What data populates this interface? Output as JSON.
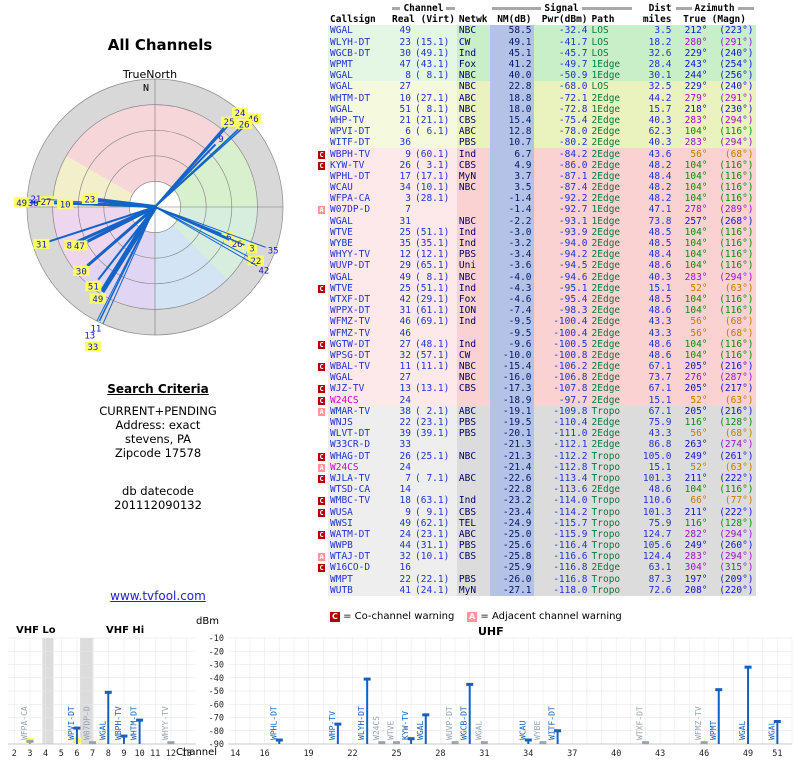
{
  "radar": {
    "title": "All Channels",
    "north_label": "TrueNorth",
    "n_axis": "N"
  },
  "search": {
    "heading": "Search Criteria",
    "lines": [
      "CURRENT+PENDING",
      "Address: exact",
      "stevens, PA",
      "Zipcode 17578"
    ],
    "datecode_label": "db datecode",
    "datecode": "201112090132",
    "link": "www.tvfool.com"
  },
  "table": {
    "groups": {
      "channel": "Channel",
      "signal": "Signal",
      "dist": "Dist",
      "azimuth": "Azimuth"
    },
    "columns": [
      "Callsign",
      "Real (Virt)",
      "Netwk",
      "NM(dB)",
      "Pwr(dBm)",
      "Path",
      "miles",
      "True (Magn)"
    ],
    "rows": [
      [
        "",
        "WGAL",
        "49",
        "",
        "NBC",
        "58.5",
        "-32.4",
        "LOS",
        "3.5",
        212,
        223,
        "g",
        0
      ],
      [
        "",
        "WLYH-DT",
        "23",
        "(15.1)",
        "CW",
        "49.1",
        "-41.7",
        "LOS",
        "18.2",
        280,
        291,
        "g",
        0
      ],
      [
        "",
        "WGCB-DT",
        "30",
        "(49.1)",
        "Ind",
        "45.1",
        "-45.7",
        "LOS",
        "32.6",
        229,
        240,
        "g",
        0
      ],
      [
        "",
        "WPMT",
        "47",
        "(43.1)",
        "Fox",
        "41.2",
        "-49.7",
        "1Edge",
        "28.4",
        243,
        254,
        "g",
        0
      ],
      [
        "",
        "WGAL",
        "8",
        "( 8.1)",
        "NBC",
        "40.0",
        "-50.9",
        "1Edge",
        "30.1",
        244,
        256,
        "g",
        0
      ],
      [
        "",
        "WGAL",
        "27",
        "",
        "NBC",
        "22.8",
        "-68.0",
        "LOS",
        "32.5",
        229,
        240,
        "y",
        0
      ],
      [
        "",
        "WHTM-DT",
        "10",
        "(27.1)",
        "ABC",
        "18.8",
        "-72.1",
        "2Edge",
        "44.2",
        279,
        291,
        "y",
        0
      ],
      [
        "",
        "WGAL",
        "51",
        "( 8.1)",
        "NBC",
        "18.0",
        "-72.8",
        "1Edge",
        "15.7",
        218,
        230,
        "y",
        0
      ],
      [
        "",
        "WHP-TV",
        "21",
        "(21.1)",
        "CBS",
        "15.4",
        "-75.4",
        "2Edge",
        "40.3",
        283,
        294,
        "y",
        0
      ],
      [
        "",
        "WPVI-DT",
        "6",
        "( 6.1)",
        "ABC",
        "12.8",
        "-78.0",
        "2Edge",
        "62.3",
        104,
        116,
        "y",
        0
      ],
      [
        "",
        "WITF-DT",
        "36",
        "",
        "PBS",
        "10.7",
        "-80.2",
        "2Edge",
        "40.3",
        283,
        294,
        "y",
        0
      ],
      [
        "C",
        "WBPH-TV",
        "9",
        "(60.1)",
        "Ind",
        "6.7",
        "-84.2",
        "2Edge",
        "43.6",
        56,
        68,
        "p",
        0
      ],
      [
        "C",
        "KYW-TV",
        "26",
        "( 3.1)",
        "CBS",
        "4.9",
        "-86.0",
        "2Edge",
        "48.2",
        104,
        116,
        "p",
        0
      ],
      [
        "",
        "WPHL-DT",
        "17",
        "(17.1)",
        "MyN",
        "3.7",
        "-87.1",
        "2Edge",
        "48.4",
        104,
        116,
        "p",
        0
      ],
      [
        "",
        "WCAU",
        "34",
        "(10.1)",
        "NBC",
        "3.5",
        "-87.4",
        "2Edge",
        "48.2",
        104,
        116,
        "p",
        0
      ],
      [
        "",
        "WFPA-CA",
        "3",
        "(28.1)",
        "",
        "-1.4",
        "-92.2",
        "2Edge",
        "48.2",
        104,
        116,
        "p",
        0
      ],
      [
        "A",
        "W07DP-D",
        "7",
        "",
        "",
        "-1.4",
        "-92.7",
        "1Edge",
        "47.1",
        278,
        289,
        "p",
        0
      ],
      [
        "",
        "WGAL",
        "31",
        "",
        "NBC",
        "-2.2",
        "-93.1",
        "1Edge",
        "73.8",
        257,
        268,
        "p",
        0
      ],
      [
        "",
        "WTVE",
        "25",
        "(51.1)",
        "Ind",
        "-3.0",
        "-93.9",
        "2Edge",
        "48.5",
        104,
        116,
        "p",
        0
      ],
      [
        "",
        "WYBE",
        "35",
        "(35.1)",
        "Ind",
        "-3.2",
        "-94.0",
        "2Edge",
        "48.5",
        104,
        116,
        "p",
        0
      ],
      [
        "",
        "WHYY-TV",
        "12",
        "(12.1)",
        "PBS",
        "-3.4",
        "-94.2",
        "2Edge",
        "48.4",
        104,
        116,
        "p",
        0
      ],
      [
        "",
        "WUVP-DT",
        "29",
        "(65.1)",
        "Uni",
        "-3.6",
        "-94.5",
        "2Edge",
        "48.6",
        104,
        116,
        "p",
        0
      ],
      [
        "",
        "WGAL",
        "49",
        "( 8.1)",
        "NBC",
        "-4.0",
        "-94.6",
        "2Edge",
        "40.3",
        283,
        294,
        "p",
        0
      ],
      [
        "C",
        "WTVE",
        "25",
        "(51.1)",
        "Ind",
        "-4.3",
        "-95.1",
        "2Edge",
        "15.1",
        52,
        63,
        "p",
        0
      ],
      [
        "",
        "WTXF-DT",
        "42",
        "(29.1)",
        "Fox",
        "-4.6",
        "-95.4",
        "2Edge",
        "48.5",
        104,
        116,
        "p",
        0
      ],
      [
        "",
        "WPPX-DT",
        "31",
        "(61.1)",
        "ION",
        "-7.4",
        "-98.3",
        "2Edge",
        "48.6",
        104,
        116,
        "p",
        0
      ],
      [
        "",
        "WFMZ-TV",
        "46",
        "(69.1)",
        "Ind",
        "-9.5",
        "-100.4",
        "2Edge",
        "43.3",
        56,
        68,
        "p",
        0
      ],
      [
        "",
        "WFMZ-TV",
        "46",
        "",
        "",
        "-9.5",
        "-100.4",
        "2Edge",
        "43.3",
        56,
        68,
        "p",
        0
      ],
      [
        "C",
        "WGTW-DT",
        "27",
        "(48.1)",
        "Ind",
        "-9.6",
        "-100.5",
        "2Edge",
        "48.6",
        104,
        116,
        "p",
        0
      ],
      [
        "",
        "WPSG-DT",
        "32",
        "(57.1)",
        "CW",
        "-10.0",
        "-100.8",
        "2Edge",
        "48.6",
        104,
        116,
        "p",
        0
      ],
      [
        "C",
        "WBAL-TV",
        "11",
        "(11.1)",
        "NBC",
        "-15.4",
        "-106.2",
        "2Edge",
        "67.1",
        205,
        216,
        "p",
        0
      ],
      [
        "",
        "WGAL",
        "27",
        "",
        "NBC",
        "-16.0",
        "-106.8",
        "2Edge",
        "73.7",
        276,
        287,
        "p",
        0
      ],
      [
        "C",
        "WJZ-TV",
        "13",
        "(13.1)",
        "CBS",
        "-17.3",
        "-107.8",
        "2Edge",
        "67.1",
        205,
        217,
        "p",
        0
      ],
      [
        "C",
        "W24CS",
        "24",
        "",
        "",
        "-18.9",
        "-97.7",
        "2Edge",
        "15.1",
        52,
        63,
        "p",
        1
      ],
      [
        "A",
        "WMAR-TV",
        "38",
        "( 2.1)",
        "ABC",
        "-19.1",
        "-109.8",
        "Tropo",
        "67.1",
        205,
        216,
        "x",
        0
      ],
      [
        "",
        "WNJS",
        "22",
        "(23.1)",
        "PBS",
        "-19.5",
        "-110.4",
        "2Edge",
        "75.9",
        116,
        128,
        "x",
        0
      ],
      [
        "",
        "WLVT-DT",
        "39",
        "(39.1)",
        "PBS",
        "-20.1",
        "-111.0",
        "2Edge",
        "43.3",
        56,
        68,
        "x",
        0
      ],
      [
        "",
        "W33CR-D",
        "33",
        "",
        "",
        "-21.3",
        "-112.1",
        "2Edge",
        "86.8",
        263,
        274,
        "x",
        0
      ],
      [
        "C",
        "WHAG-DT",
        "26",
        "(25.1)",
        "NBC",
        "-21.3",
        "-112.2",
        "Tropo",
        "105.0",
        249,
        261,
        "x",
        0
      ],
      [
        "A",
        "W24CS",
        "24",
        "",
        "",
        "-21.4",
        "-112.8",
        "Tropo",
        "15.1",
        52,
        63,
        "x",
        1
      ],
      [
        "C",
        "WJLA-TV",
        "7",
        "( 7.1)",
        "ABC",
        "-22.6",
        "-113.4",
        "Tropo",
        "101.3",
        211,
        222,
        "x",
        0
      ],
      [
        "",
        "WTSD-CA",
        "14",
        "",
        "",
        "-22.8",
        "-113.6",
        "2Edge",
        "48.6",
        104,
        116,
        "x",
        0
      ],
      [
        "C",
        "WMBC-TV",
        "18",
        "(63.1)",
        "Ind",
        "-23.2",
        "-114.0",
        "Tropo",
        "110.6",
        66,
        77,
        "x",
        0
      ],
      [
        "C",
        "WUSA",
        "9",
        "( 9.1)",
        "CBS",
        "-23.4",
        "-114.2",
        "Tropo",
        "101.3",
        211,
        222,
        "x",
        0
      ],
      [
        "",
        "WWSI",
        "49",
        "(62.1)",
        "TEL",
        "-24.9",
        "-115.7",
        "Tropo",
        "75.9",
        116,
        128,
        "x",
        0
      ],
      [
        "C",
        "WATM-DT",
        "24",
        "(23.1)",
        "ABC",
        "-25.0",
        "-115.9",
        "Tropo",
        "124.7",
        282,
        294,
        "x",
        0
      ],
      [
        "",
        "WWPB",
        "44",
        "(31.1)",
        "PBS",
        "-25.6",
        "-116.4",
        "Tropo",
        "105.6",
        249,
        260,
        "x",
        0
      ],
      [
        "A",
        "WTAJ-DT",
        "32",
        "(10.1)",
        "CBS",
        "-25.8",
        "-116.6",
        "Tropo",
        "124.4",
        283,
        294,
        "x",
        0
      ],
      [
        "C",
        "W16CO-D",
        "16",
        "",
        "",
        "-25.9",
        "-116.8",
        "2Edge",
        "63.1",
        304,
        315,
        "x",
        0
      ],
      [
        "",
        "WMPT",
        "22",
        "(22.1)",
        "PBS",
        "-26.0",
        "-116.8",
        "Tropo",
        "87.3",
        197,
        209,
        "x",
        0
      ],
      [
        "",
        "WUTB",
        "41",
        "(24.1)",
        "MyN",
        "-27.1",
        "-118.0",
        "Tropo",
        "72.6",
        208,
        220,
        "x",
        0
      ]
    ]
  },
  "legend": {
    "co_badge": "C",
    "co_text": "= Co-channel warning",
    "adj_badge": "A",
    "adj_text": "= Adjacent channel warning"
  },
  "spectrum": {
    "dbm_label": "dBm",
    "channel_label": "Channel",
    "y_ticks": [
      -10,
      -20,
      -30,
      -40,
      -50,
      -60,
      -70,
      -80,
      -90
    ],
    "vhf_lo_label": "VHF Lo",
    "vhf_hi_label": "VHF Hi",
    "uhf_title": "UHF"
  },
  "chart_data": [
    {
      "type": "scatter",
      "title": "All Channels (azimuth radar, TrueNorth up)",
      "pointers": [
        {
          "ch": "24",
          "az": 42,
          "r": 0.93,
          "w": 1.5,
          "hl": true
        },
        {
          "ch": "46",
          "az": 48,
          "r": 0.97,
          "w": 1.5,
          "hl": true
        },
        {
          "ch": "25",
          "az": 41,
          "r": 0.82,
          "w": 2,
          "hl": true
        },
        {
          "ch": "26",
          "az": 47,
          "r": 0.89,
          "w": 1.5,
          "hl": true
        },
        {
          "ch": "9",
          "az": 44,
          "r": 0.68,
          "w": 2,
          "hl": false
        },
        {
          "ch": "6",
          "az": 112,
          "r": 0.56,
          "w": 1.5,
          "hl": true
        },
        {
          "ch": "26",
          "az": 114,
          "r": 0.64,
          "w": 1.5,
          "hl": true
        },
        {
          "ch": "3",
          "az": 113,
          "r": 0.76,
          "w": 1.5,
          "hl": true
        },
        {
          "ch": "35",
          "az": 110,
          "r": 0.92,
          "w": 1,
          "hl": false
        },
        {
          "ch": "22",
          "az": 118,
          "r": 0.83,
          "w": 1,
          "hl": true
        },
        {
          "ch": "42",
          "az": 120,
          "r": 0.92,
          "w": 1,
          "hl": false
        },
        {
          "ch": "49",
          "az": 272,
          "r": 0.98,
          "w": 1.5,
          "hl": true
        },
        {
          "ch": "36",
          "az": 272,
          "r": 0.89,
          "w": 1.5,
          "hl": false
        },
        {
          "ch": "27",
          "az": 273,
          "r": 0.79,
          "w": 1.5,
          "hl": true
        },
        {
          "ch": "21",
          "az": 274,
          "r": 0.87,
          "w": 1,
          "hl": false
        },
        {
          "ch": "10",
          "az": 272,
          "r": 0.64,
          "w": 1.5,
          "hl": true
        },
        {
          "ch": "23",
          "az": 277,
          "r": 0.45,
          "w": 4,
          "hl": true
        },
        {
          "ch": "31",
          "az": 252,
          "r": 0.87,
          "w": 2,
          "hl": true
        },
        {
          "ch": "8",
          "az": 246,
          "r": 0.67,
          "w": 3,
          "hl": true
        },
        {
          "ch": "47",
          "az": 243,
          "r": 0.6,
          "w": 3,
          "hl": true
        },
        {
          "ch": "30",
          "az": 229,
          "r": 0.7,
          "w": 3,
          "hl": true
        },
        {
          "ch": "49",
          "az": 212,
          "r": 0.78,
          "w": 5,
          "hl": true
        },
        {
          "ch": "51",
          "az": 218,
          "r": 0.72,
          "w": 2,
          "hl": true
        },
        {
          "ch": "11",
          "az": 206,
          "r": 0.99,
          "w": 1.5,
          "hl": false
        },
        {
          "ch": "13",
          "az": 207,
          "r": 1.06,
          "w": 1,
          "hl": false
        },
        {
          "ch": "33",
          "az": 204,
          "r": 1.13,
          "w": 1,
          "hl": true
        }
      ]
    },
    {
      "type": "bar",
      "title": "VHF signal levels (dBm)",
      "x_ticks": [
        2,
        3,
        4,
        5,
        6,
        7,
        8,
        9,
        10,
        11,
        12,
        13
      ],
      "ylim": [
        -90,
        -10
      ],
      "bars": [
        {
          "ch": 3,
          "call": "WFPA-CA",
          "dbm": -88,
          "gray": true,
          "hl": true
        },
        {
          "ch": 6,
          "call": "WPVI-DT",
          "dbm": -78,
          "gray": false,
          "hl": true
        },
        {
          "ch": 7,
          "call": "W07DP-D",
          "dbm": -89,
          "gray": true,
          "hl": false
        },
        {
          "ch": 8,
          "call": "WGAL",
          "dbm": -51,
          "gray": false,
          "hl": false
        },
        {
          "ch": 9,
          "call": "WBPH-TV",
          "dbm": -84,
          "gray": false,
          "hl": false
        },
        {
          "ch": 10,
          "call": "WHTM-DT",
          "dbm": -72,
          "gray": false,
          "hl": false
        },
        {
          "ch": 12,
          "call": "WHYY-TV",
          "dbm": -89,
          "gray": true,
          "hl": false
        }
      ]
    },
    {
      "type": "bar",
      "title": "UHF signal levels (dBm)",
      "x_ticks": [
        14,
        16,
        19,
        22,
        25,
        28,
        31,
        34,
        37,
        40,
        43,
        46,
        49,
        51
      ],
      "ylim": [
        -90,
        -10
      ],
      "bars": [
        {
          "ch": 17,
          "call": "WPHL-DT",
          "dbm": -87,
          "gray": false,
          "hl": false
        },
        {
          "ch": 21,
          "call": "WHP-TV",
          "dbm": -75,
          "gray": false,
          "hl": false
        },
        {
          "ch": 23,
          "call": "WLYH-DT",
          "dbm": -41,
          "gray": false,
          "hl": false
        },
        {
          "ch": 24,
          "call": "W24CS",
          "dbm": -89,
          "gray": true,
          "hl": false
        },
        {
          "ch": 25,
          "call": "WTVE",
          "dbm": -89,
          "gray": true,
          "hl": false
        },
        {
          "ch": 26,
          "call": "KYW-TV",
          "dbm": -86,
          "gray": false,
          "hl": false
        },
        {
          "ch": 27,
          "call": "WGAL",
          "dbm": -68,
          "gray": false,
          "hl": false
        },
        {
          "ch": 29,
          "call": "WUVP-DT",
          "dbm": -89,
          "gray": true,
          "hl": false
        },
        {
          "ch": 30,
          "call": "WGCB-DT",
          "dbm": -45,
          "gray": false,
          "hl": false
        },
        {
          "ch": 31,
          "call": "WGAL",
          "dbm": -89,
          "gray": true,
          "hl": false
        },
        {
          "ch": 34,
          "call": "WCAU",
          "dbm": -87,
          "gray": false,
          "hl": false
        },
        {
          "ch": 35,
          "call": "WYBE",
          "dbm": -89,
          "gray": true,
          "hl": false
        },
        {
          "ch": 36,
          "call": "WITF-DT",
          "dbm": -80,
          "gray": false,
          "hl": false
        },
        {
          "ch": 42,
          "call": "WTXF-DT",
          "dbm": -89,
          "gray": true,
          "hl": false
        },
        {
          "ch": 46,
          "call": "WFMZ-TV",
          "dbm": -89,
          "gray": true,
          "hl": false
        },
        {
          "ch": 47,
          "call": "WPMT",
          "dbm": -49,
          "gray": false,
          "hl": false
        },
        {
          "ch": 49,
          "call": "WGAL",
          "dbm": -32,
          "gray": false,
          "hl": false
        },
        {
          "ch": 51,
          "call": "WGAL",
          "dbm": -73,
          "gray": false,
          "hl": false
        }
      ]
    }
  ]
}
